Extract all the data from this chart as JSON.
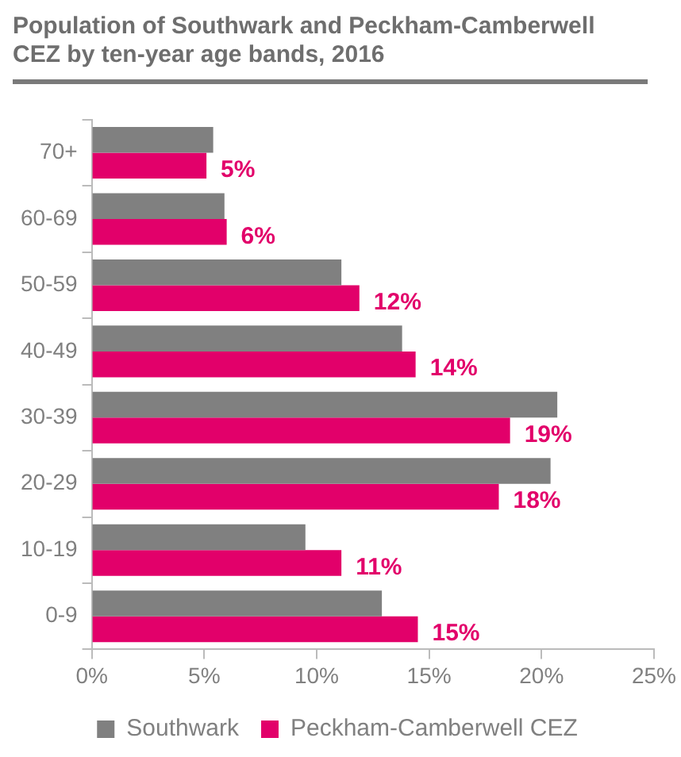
{
  "chart_data": {
    "type": "bar",
    "orientation": "horizontal",
    "title": "Population of Southwark and Peckham-Camberwell CEZ by ten-year age bands, 2016",
    "categories": [
      "70+",
      "60-69",
      "50-59",
      "40-49",
      "30-39",
      "20-29",
      "10-19",
      "0-9"
    ],
    "series": [
      {
        "name": "Southwark",
        "color": "#808080",
        "values": [
          5.4,
          5.9,
          11.1,
          13.8,
          20.7,
          20.4,
          9.5,
          12.9
        ]
      },
      {
        "name": "Peckham-Camberwell CEZ",
        "color": "#e2006a",
        "values": [
          5.1,
          6.0,
          11.9,
          14.4,
          18.6,
          18.1,
          11.1,
          14.5
        ],
        "value_labels": [
          "5%",
          "6%",
          "12%",
          "14%",
          "19%",
          "18%",
          "11%",
          "15%"
        ]
      }
    ],
    "xlim": [
      0,
      25
    ],
    "xticks": [
      {
        "value": 0,
        "label": "0%"
      },
      {
        "value": 5,
        "label": "5%"
      },
      {
        "value": 10,
        "label": "10%"
      },
      {
        "value": 15,
        "label": "15%"
      },
      {
        "value": 20,
        "label": "20%"
      },
      {
        "value": 25,
        "label": "25%"
      }
    ],
    "grid": false,
    "legend": "bottom"
  }
}
